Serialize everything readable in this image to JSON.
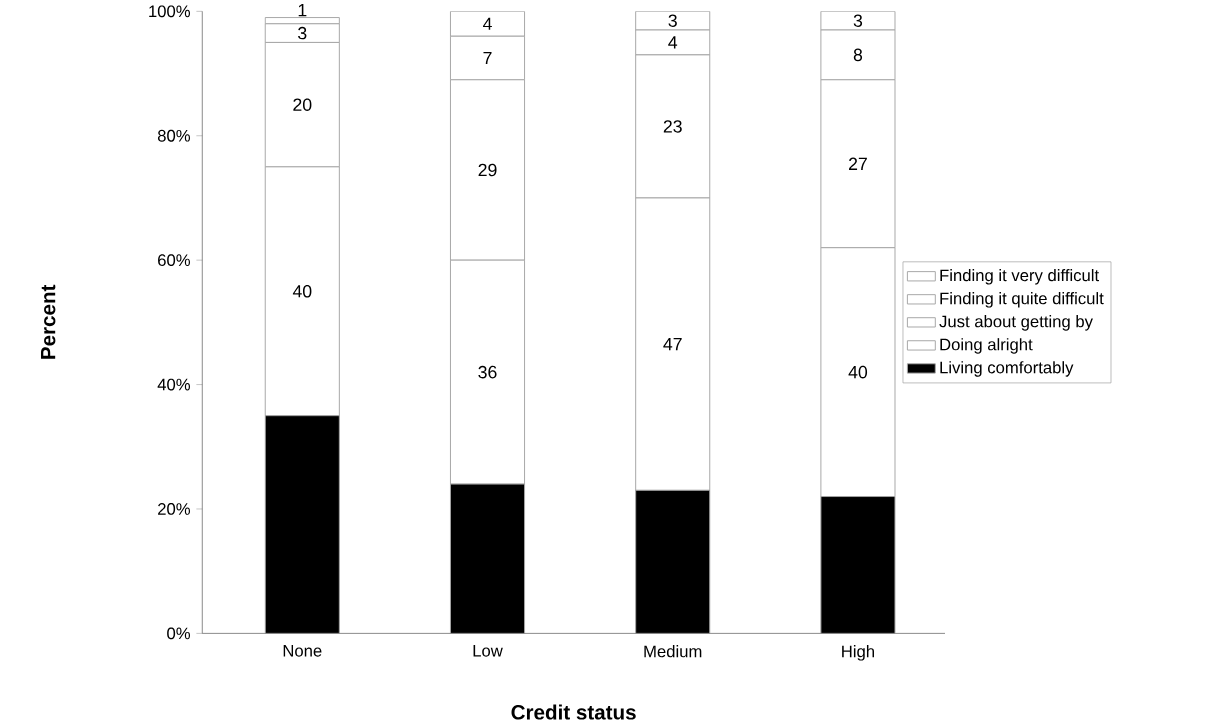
{
  "chart_data": {
    "type": "bar",
    "stacked": true,
    "xlabel": "Credit status",
    "ylabel": "Percent",
    "categories": [
      "None",
      "Low",
      "Medium",
      "High"
    ],
    "series": [
      {
        "name": "Living comfortably",
        "color": "#000000",
        "values": [
          35,
          24,
          23,
          22
        ],
        "value_labels": [
          null,
          null,
          null,
          null
        ]
      },
      {
        "name": "Doing alright",
        "color": "#ffffff",
        "values": [
          40,
          36,
          47,
          40
        ],
        "value_labels": [
          "40",
          "36",
          "47",
          "40"
        ]
      },
      {
        "name": "Just about getting by",
        "color": "#ffffff",
        "values": [
          20,
          29,
          23,
          27
        ],
        "value_labels": [
          "20",
          "29",
          "23",
          "27"
        ]
      },
      {
        "name": "Finding it quite difficult",
        "color": "#ffffff",
        "values": [
          3,
          7,
          4,
          8
        ],
        "value_labels": [
          "3",
          "7",
          "4",
          "8"
        ]
      },
      {
        "name": "Finding it very difficult",
        "color": "#ffffff",
        "values": [
          1,
          4,
          3,
          3
        ],
        "value_labels": [
          "1",
          "4",
          "3",
          "3"
        ]
      }
    ],
    "ylim": [
      0,
      100
    ],
    "yticks": [
      {
        "value": 0,
        "label": "0%"
      },
      {
        "value": 20,
        "label": "20%"
      },
      {
        "value": 40,
        "label": "40%"
      },
      {
        "value": 60,
        "label": "60%"
      },
      {
        "value": 80,
        "label": "80%"
      },
      {
        "value": 100,
        "label": "100%"
      }
    ],
    "grid": false,
    "legend": "right"
  }
}
